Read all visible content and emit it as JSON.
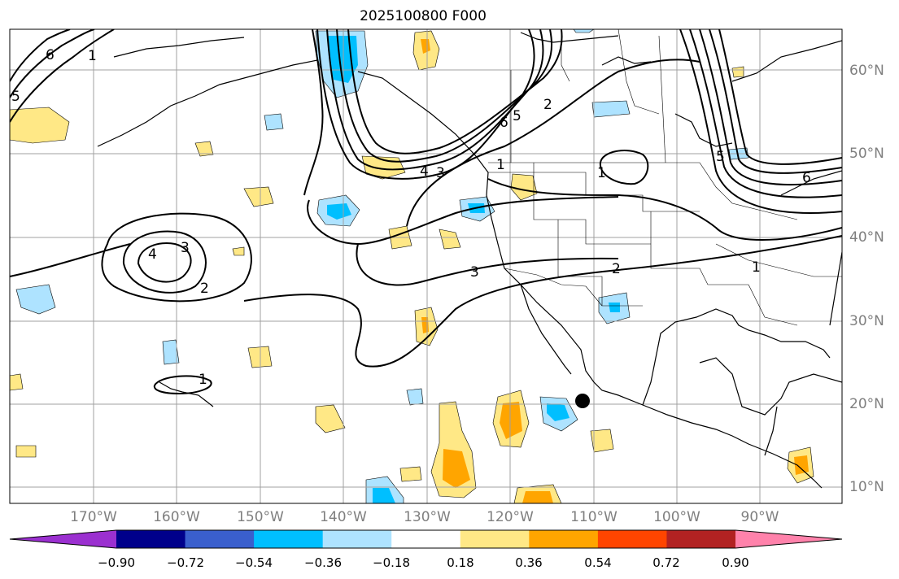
{
  "title": "2025100800 F000",
  "latitude_labels": [
    "60°N",
    "50°N",
    "40°N",
    "30°N",
    "20°N",
    "10°N"
  ],
  "longitude_labels": [
    "170°W",
    "160°W",
    "150°W",
    "140°W",
    "130°W",
    "120°W",
    "110°W",
    "100°W",
    "90°W"
  ],
  "contour_labels": [
    "6",
    "5",
    "4",
    "3",
    "2",
    "1"
  ],
  "colorbar": {
    "ticks": [
      "−0.90",
      "−0.72",
      "−0.54",
      "−0.36",
      "−0.18",
      "0.18",
      "0.36",
      "0.54",
      "0.72",
      "0.90"
    ],
    "colors": [
      "#9b30d0",
      "#00008b",
      "#3a5fcd",
      "#00bfff",
      "#aee3ff",
      "#ffffff",
      "#ffe886",
      "#ffa500",
      "#ff4500",
      "#b22222",
      "#ff82ab"
    ]
  },
  "colors": {
    "grid": "#a0a0a0",
    "contour": "#000000",
    "coast": "#000000",
    "axis_label": "#7f7f7f"
  },
  "marker": "storm-center-dot"
}
